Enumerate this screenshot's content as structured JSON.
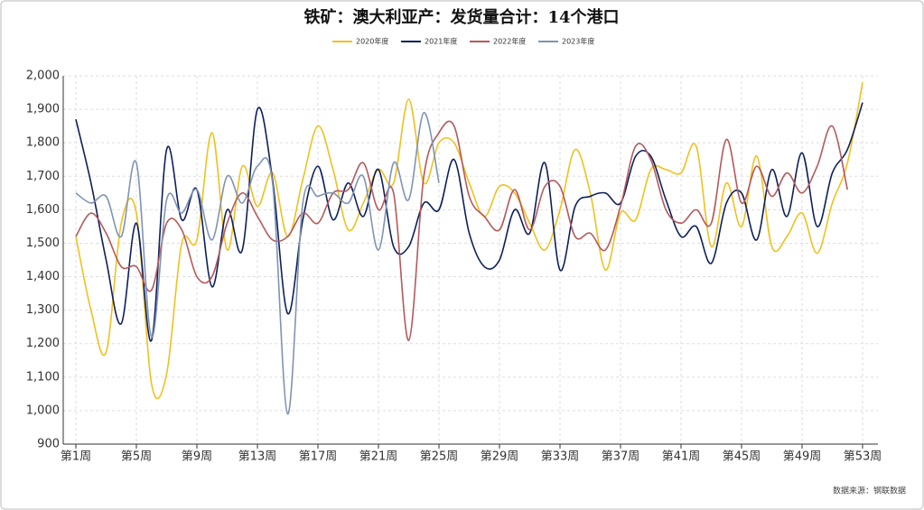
{
  "chart_data": {
    "type": "line",
    "title": "铁矿：澳大利亚产：发货量合计：14个港口",
    "source": "数据来源：钢联数据",
    "categories": [
      "第1周",
      null,
      null,
      null,
      "第5周",
      null,
      null,
      null,
      "第9周",
      null,
      null,
      null,
      "第13周",
      null,
      null,
      null,
      "第17周",
      null,
      null,
      null,
      "第21周",
      null,
      null,
      null,
      "第25周",
      null,
      null,
      null,
      "第29周",
      null,
      null,
      null,
      "第33周",
      null,
      null,
      null,
      "第37周",
      null,
      null,
      null,
      "第41周",
      null,
      null,
      null,
      "第45周",
      null,
      null,
      null,
      "第49周",
      null,
      null,
      null,
      "第53周"
    ],
    "series": [
      {
        "name": "2020年度",
        "color": "#f2c01d",
        "values": [
          1520,
          1300,
          1175,
          1560,
          1590,
          1080,
          1110,
          1500,
          1510,
          1830,
          1480,
          1730,
          1610,
          1710,
          1520,
          1690,
          1850,
          1720,
          1540,
          1620,
          1720,
          1680,
          1930,
          1680,
          1800,
          1800,
          1680,
          1580,
          1670,
          1650,
          1560,
          1480,
          1600,
          1780,
          1650,
          1420,
          1590,
          1570,
          1720,
          1720,
          1710,
          1790,
          1490,
          1680,
          1550,
          1760,
          1490,
          1520,
          1590,
          1470,
          1620,
          1740,
          1980
        ]
      },
      {
        "name": "2021年度",
        "color": "#0d1f5c",
        "values": [
          1870,
          1680,
          1450,
          1260,
          1560,
          1210,
          1780,
          1570,
          1660,
          1370,
          1600,
          1480,
          1900,
          1690,
          1290,
          1570,
          1730,
          1570,
          1680,
          1580,
          1720,
          1490,
          1490,
          1620,
          1600,
          1750,
          1530,
          1430,
          1450,
          1600,
          1530,
          1740,
          1420,
          1610,
          1640,
          1650,
          1620,
          1760,
          1760,
          1630,
          1520,
          1550,
          1440,
          1620,
          1650,
          1510,
          1720,
          1580,
          1770,
          1550,
          1710,
          1780,
          1920
        ]
      },
      {
        "name": "2022年度",
        "color": "#b5585a",
        "values": [
          1520,
          1590,
          1530,
          1430,
          1430,
          1360,
          1560,
          1540,
          1400,
          1400,
          1560,
          1650,
          1580,
          1510,
          1520,
          1590,
          1560,
          1650,
          1660,
          1740,
          1600,
          1650,
          1210,
          1700,
          1830,
          1850,
          1640,
          1580,
          1540,
          1660,
          1540,
          1670,
          1670,
          1520,
          1530,
          1480,
          1610,
          1790,
          1750,
          1600,
          1560,
          1600,
          1560,
          1810,
          1620,
          1730,
          1640,
          1710,
          1650,
          1730,
          1850,
          1660,
          null
        ]
      },
      {
        "name": "2023年度",
        "color": "#7f93b5",
        "values": [
          1650,
          1620,
          1640,
          1520,
          1740,
          1220,
          1630,
          1590,
          1660,
          1510,
          1700,
          1620,
          1730,
          1680,
          990,
          1620,
          1640,
          1650,
          1620,
          1700,
          1480,
          1740,
          1630,
          1890,
          1680,
          null,
          null,
          null,
          null,
          null,
          null,
          null,
          null,
          null,
          null,
          null,
          null,
          null,
          null,
          null,
          null,
          null,
          null,
          null,
          null,
          null,
          null,
          null,
          null,
          null,
          null,
          null,
          null
        ]
      }
    ],
    "ylim": [
      900,
      2000
    ],
    "yticks": [
      900,
      {
        "value": 1000,
        "label": "1,000"
      },
      {
        "value": 1100,
        "label": "1,100"
      },
      {
        "value": 1200,
        "label": "1,200"
      },
      {
        "value": 1300,
        "label": "1,300"
      },
      {
        "value": 1400,
        "label": "1,400"
      },
      {
        "value": 1500,
        "label": "1,500"
      },
      {
        "value": 1600,
        "label": "1,600"
      },
      {
        "value": 1700,
        "label": "1,700"
      },
      {
        "value": 1800,
        "label": "1,800"
      },
      {
        "value": 1900,
        "label": "1,900"
      },
      {
        "value": 2000,
        "label": "2,000"
      }
    ],
    "grid": true,
    "smooth": true
  }
}
